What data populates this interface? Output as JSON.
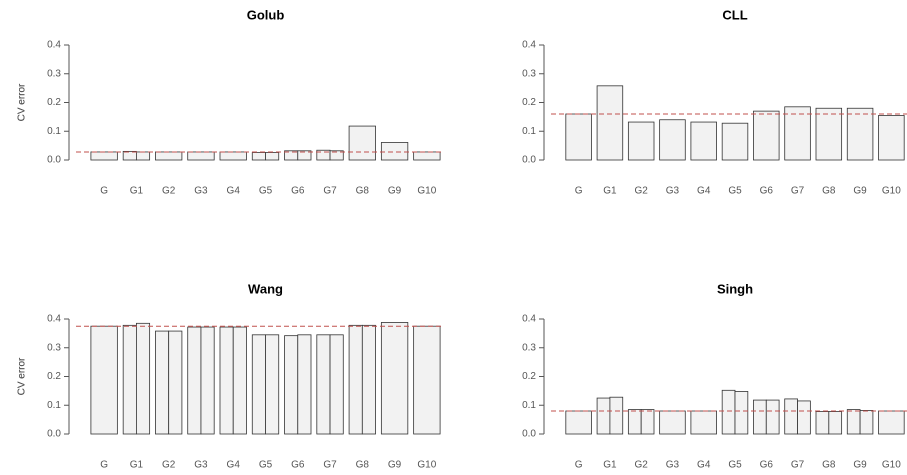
{
  "chart_data": [
    {
      "type": "bar",
      "title": "Golub",
      "ylabel": "CV error",
      "ylim": [
        0,
        0.4
      ],
      "yticks": [
        "0.0",
        "0.1",
        "0.2",
        "0.3",
        "0.4"
      ],
      "categories": [
        "G",
        "G1",
        "G2",
        "G3",
        "G4",
        "G5",
        "G6",
        "G7",
        "G8",
        "G9",
        "G10"
      ],
      "bars": [
        [
          0.028
        ],
        [
          0.03,
          0.028
        ],
        [
          0.028
        ],
        [
          0.028
        ],
        [
          0.028
        ],
        [
          0.026,
          0.026
        ],
        [
          0.032,
          0.032
        ],
        [
          0.034,
          0.032
        ],
        [
          0.118
        ],
        [
          0.061
        ],
        [
          0.028
        ]
      ],
      "reference_line": 0.028,
      "colors": {
        "bar_fill": "#f2f2f2",
        "bar_stroke": "#333333",
        "reference_line": "#c0504d"
      }
    },
    {
      "type": "bar",
      "title": "CLL",
      "ylabel": "CV error",
      "ylim": [
        0,
        0.4
      ],
      "yticks": [
        "0.0",
        "0.1",
        "0.2",
        "0.3",
        "0.4"
      ],
      "categories": [
        "G",
        "G1",
        "G2",
        "G3",
        "G4",
        "G5",
        "G6",
        "G7",
        "G8",
        "G9",
        "G10"
      ],
      "bars": [
        [
          0.16
        ],
        [
          0.258
        ],
        [
          0.132
        ],
        [
          0.14
        ],
        [
          0.132
        ],
        [
          0.128
        ],
        [
          0.17
        ],
        [
          0.185
        ],
        [
          0.18
        ],
        [
          0.18
        ],
        [
          0.155
        ]
      ],
      "reference_line": 0.16,
      "colors": {
        "bar_fill": "#f2f2f2",
        "bar_stroke": "#333333",
        "reference_line": "#c0504d"
      }
    },
    {
      "type": "bar",
      "title": "Wang",
      "ylabel": "CV error",
      "ylim": [
        0,
        0.4
      ],
      "yticks": [
        "0.0",
        "0.1",
        "0.2",
        "0.3",
        "0.4"
      ],
      "categories": [
        "G",
        "G1",
        "G2",
        "G3",
        "G4",
        "G5",
        "G6",
        "G7",
        "G8",
        "G9",
        "G10"
      ],
      "bars": [
        [
          0.375
        ],
        [
          0.378,
          0.385
        ],
        [
          0.358,
          0.358
        ],
        [
          0.372,
          0.372
        ],
        [
          0.372,
          0.372
        ],
        [
          0.345,
          0.345
        ],
        [
          0.342,
          0.345
        ],
        [
          0.345,
          0.345
        ],
        [
          0.378,
          0.378
        ],
        [
          0.388
        ],
        [
          0.375
        ]
      ],
      "reference_line": 0.375,
      "colors": {
        "bar_fill": "#f2f2f2",
        "bar_stroke": "#333333",
        "reference_line": "#c0504d"
      }
    },
    {
      "type": "bar",
      "title": "Singh",
      "ylabel": "CV error",
      "ylim": [
        0,
        0.4
      ],
      "yticks": [
        "0.0",
        "0.1",
        "0.2",
        "0.3",
        "0.4"
      ],
      "categories": [
        "G",
        "G1",
        "G2",
        "G3",
        "G4",
        "G5",
        "G6",
        "G7",
        "G8",
        "G9",
        "G10"
      ],
      "bars": [
        [
          0.08
        ],
        [
          0.125,
          0.128
        ],
        [
          0.085,
          0.085
        ],
        [
          0.08
        ],
        [
          0.08
        ],
        [
          0.152,
          0.148
        ],
        [
          0.118,
          0.118
        ],
        [
          0.122,
          0.115
        ],
        [
          0.078,
          0.078
        ],
        [
          0.085,
          0.082
        ],
        [
          0.08
        ]
      ],
      "reference_line": 0.08,
      "colors": {
        "bar_fill": "#f2f2f2",
        "bar_stroke": "#333333",
        "reference_line": "#c0504d"
      }
    }
  ]
}
